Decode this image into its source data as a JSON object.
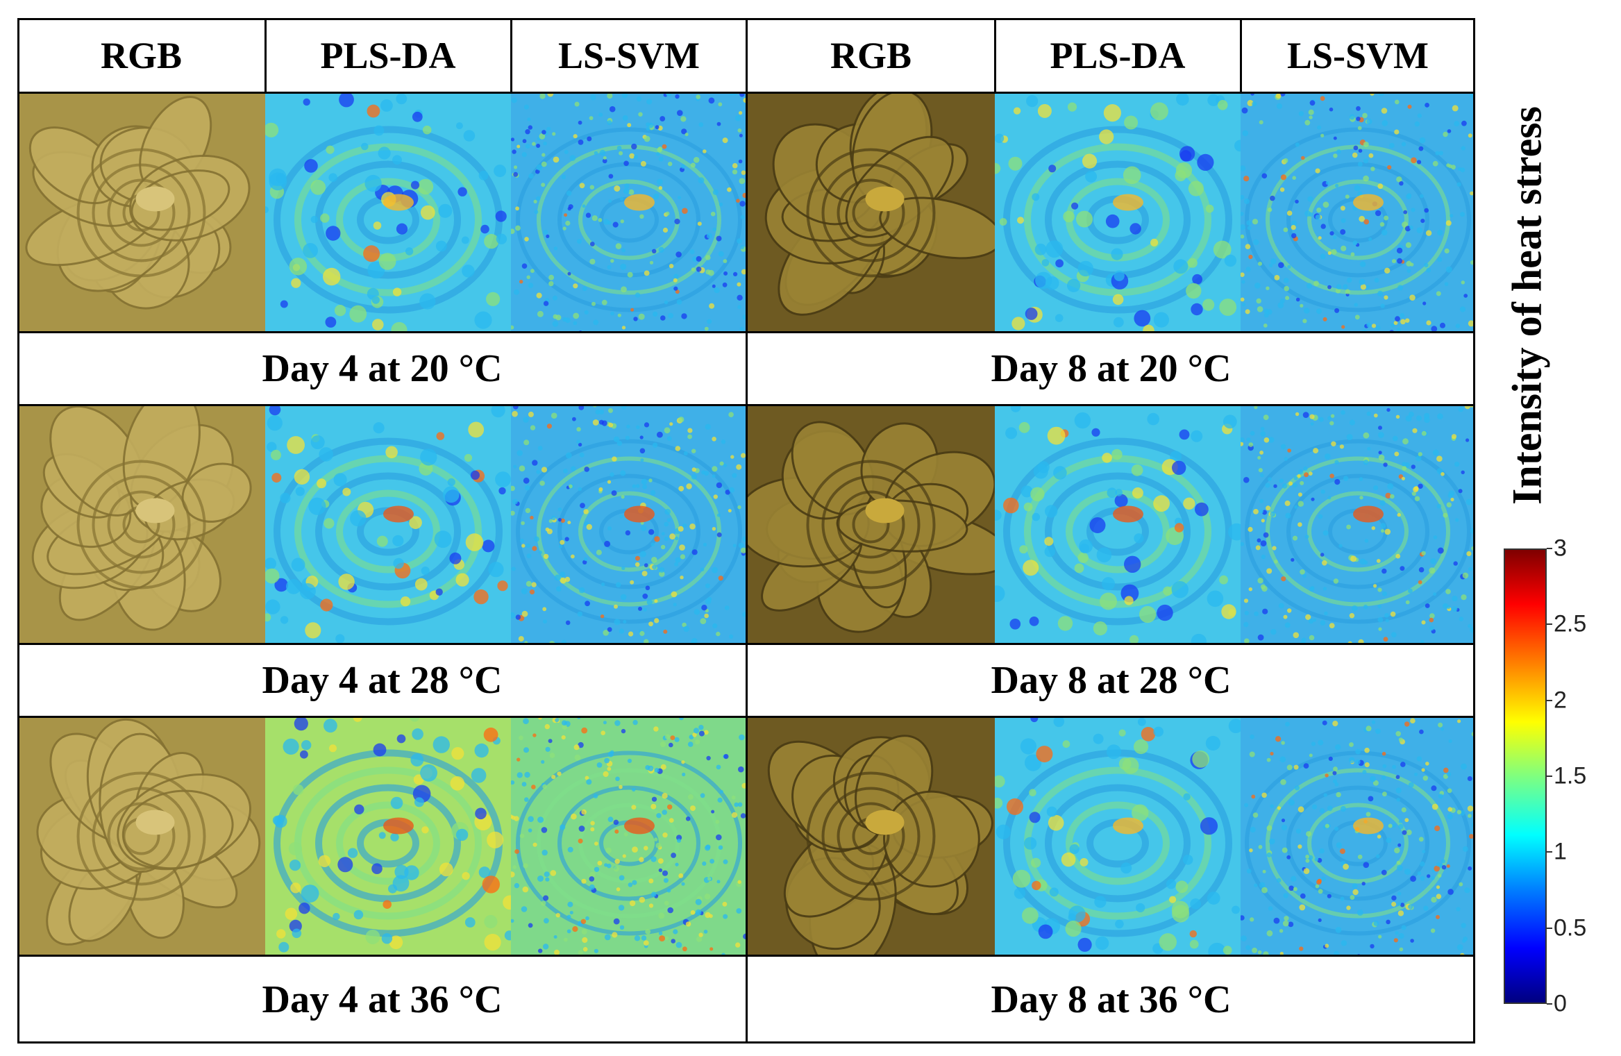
{
  "headers": {
    "left": [
      "RGB",
      "PLS-DA",
      "LS-SVM"
    ],
    "right": [
      "RGB",
      "PLS-DA",
      "LS-SVM"
    ]
  },
  "captions": {
    "row1": {
      "left": "Day 4 at 20 °C",
      "right": "Day 8 at 20 °C"
    },
    "row2": {
      "left": "Day 4 at 28 °C",
      "right": "Day 8 at 28 °C"
    },
    "row3": {
      "left": "Day 4 at 36 °C",
      "right": "Day 8 at 36 °C"
    }
  },
  "colorbar": {
    "title": "Intensity of heat stress",
    "ticks": [
      "3",
      "2.5",
      "2",
      "1.5",
      "1",
      "0.5",
      "0"
    ],
    "range": [
      0,
      3
    ]
  },
  "colors": {
    "plant_rgb": "#a08a3c",
    "border": "#000000"
  }
}
